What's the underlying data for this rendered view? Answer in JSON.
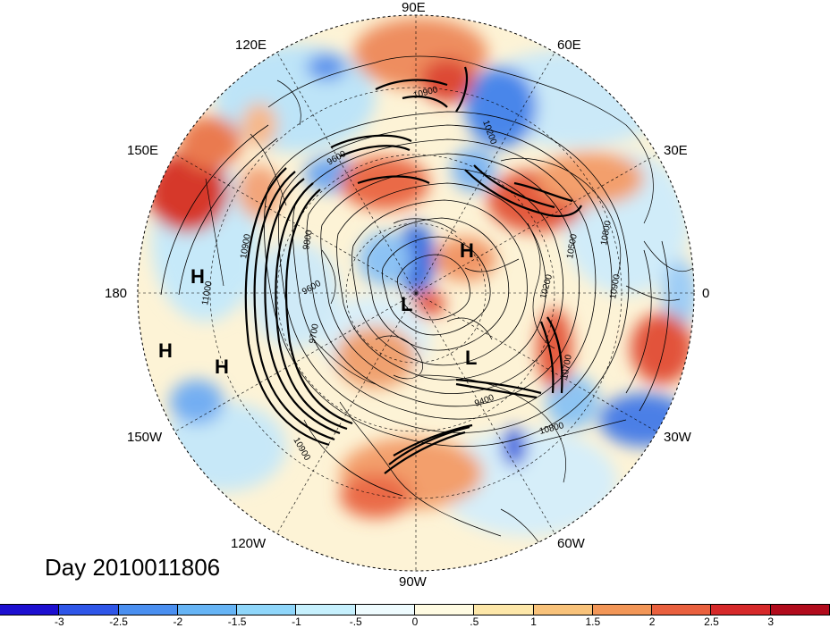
{
  "day_label": "Day 2010011806",
  "longitude_labels": {
    "lon_90e": "90E",
    "lon_60e": "60E",
    "lon_30e": "30E",
    "lon_0": "0",
    "lon_30w": "30W",
    "lon_60w": "60W",
    "lon_90w": "90W",
    "lon_120w": "120W",
    "lon_150w": "150W",
    "lon_180": "180",
    "lon_150e": "150E",
    "lon_120e": "120E"
  },
  "pressure_centers": [
    "H",
    "H",
    "H",
    "H",
    "L",
    "L"
  ],
  "contour_labels": [
    "10900",
    "10900",
    "10900",
    "10900",
    "10800",
    "10800",
    "10700",
    "10500",
    "10200",
    "10200",
    "9600",
    "9600",
    "9700",
    "9800",
    "9400",
    "11000",
    "10400"
  ],
  "colorbar": {
    "colors": [
      "#1d0fd0",
      "#2f56e8",
      "#4a8ff0",
      "#66b4f5",
      "#8fd6fa",
      "#c6f0fd",
      "#eefbfe",
      "#fffbe2",
      "#fde7a9",
      "#f8c27a",
      "#f29657",
      "#e9603e",
      "#d6292a",
      "#b10b1c"
    ],
    "ticks": [
      "-3",
      "-2.5",
      "-2",
      "-1.5",
      "-1",
      "-.5",
      "0",
      ".5",
      "1",
      "1.5",
      "2",
      "2.5",
      "3"
    ]
  },
  "colors": {
    "ocean_background": "#fdf4d8",
    "coastline": "#000000"
  }
}
